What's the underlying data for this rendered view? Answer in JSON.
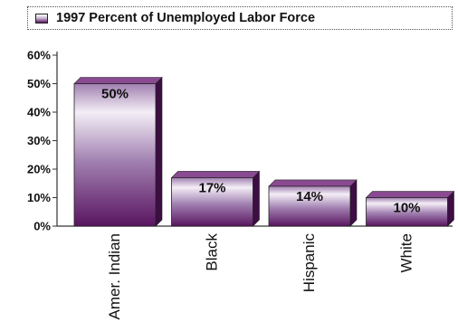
{
  "chart_data": {
    "type": "bar",
    "title": "1997 Percent of Unemployed Labor Force",
    "categories": [
      "Amer. Indian",
      "Black",
      "Hispanic",
      "White"
    ],
    "values": [
      50,
      17,
      14,
      10
    ],
    "data_labels": [
      "50%",
      "17%",
      "14%",
      "10%"
    ],
    "y_ticks": [
      "0%",
      "10%",
      "20%",
      "30%",
      "40%",
      "50%",
      "60%"
    ],
    "ylim": [
      0,
      60
    ],
    "xlabel": "",
    "ylabel": "",
    "grid": false,
    "legend": "top",
    "colors": {
      "bar_dark": "#5a1560",
      "bar_mid": "#a07fb0",
      "bar_light": "#f4eef6",
      "bar_top": "#8a4a92",
      "bar_side": "#3d0d43"
    }
  }
}
